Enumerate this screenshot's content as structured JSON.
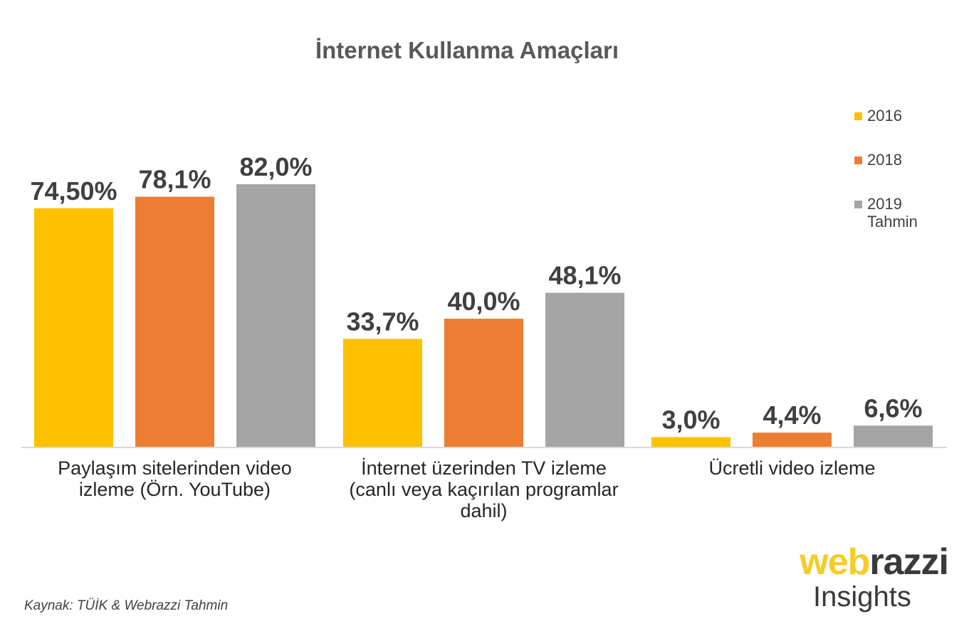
{
  "chart_data": {
    "type": "bar",
    "title": "İnternet Kullanma Amaçları",
    "categories": [
      [
        "Paylaşım sitelerinden video",
        "izleme (Örn. YouTube)"
      ],
      [
        "İnternet üzerinden TV izleme",
        "(canlı veya kaçırılan programlar",
        "dahil)"
      ],
      [
        "Ücretli video izleme"
      ]
    ],
    "series": [
      {
        "name": "2016",
        "color": "#FFC000",
        "values": [
          74.5,
          33.7,
          3.0
        ],
        "labels": [
          "74,50%",
          "33,7%",
          "3,0%"
        ]
      },
      {
        "name": "2018",
        "color": "#ED7D31",
        "values": [
          78.1,
          40.0,
          4.4
        ],
        "labels": [
          "78,1%",
          "40,0%",
          "4,4%"
        ]
      },
      {
        "name": "2019 Tahmin",
        "color": "#A5A5A5",
        "values": [
          82.0,
          48.1,
          6.6
        ],
        "labels": [
          "82,0%",
          "48,1%",
          "6,6%"
        ]
      }
    ],
    "ylim": [
      0,
      82.0
    ],
    "grid": false,
    "legend": "right"
  },
  "source": "Kaynak: TÜİK & Webrazzi Tahmin",
  "logo": {
    "part1": "web",
    "part2": "razzi",
    "sub": "Insights"
  }
}
